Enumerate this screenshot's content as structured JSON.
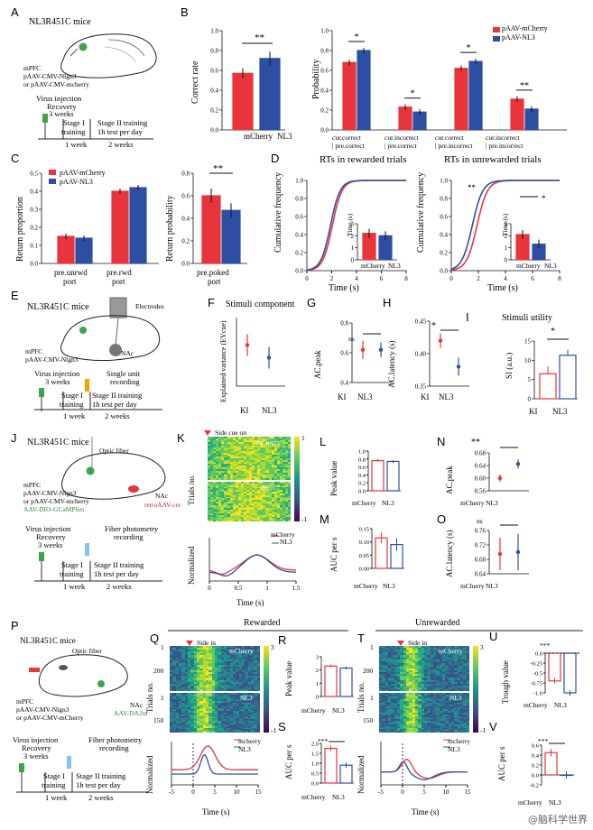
{
  "colors": {
    "mcherry": "#e8343a",
    "nl3": "#2d4fa3",
    "dark": "#111"
  },
  "A": {
    "letter": "A",
    "mouse": "NL3R451C mice",
    "injection": [
      "mPFC",
      "pAAV-CMV-Nlgn3",
      "or pAAV-CMV-mcherry"
    ],
    "timeline": {
      "virus": "Virus injection",
      "recovery": "Recovery",
      "weeks3": "3 weeks",
      "stage1": "Stage I",
      "training": "training",
      "week1": "1 week",
      "stage2": "Stage II training",
      "test": "1h test per day",
      "weeks2": "2 weeks"
    }
  },
  "B": {
    "letter": "B",
    "left": {
      "ylabel": "Correct rate",
      "categories": [
        "mCherry",
        "NL3"
      ],
      "values": [
        0.57,
        0.72
      ],
      "errors": [
        0.05,
        0.07
      ],
      "ylim": [
        0,
        1
      ],
      "yticks": [
        "0.0",
        "0.2",
        "0.4",
        "0.6",
        "0.8",
        "1.0"
      ],
      "sig": "**"
    },
    "right": {
      "ylabel": "Probability",
      "legend": [
        "pAAV-mCherry",
        "pAAV-NL3"
      ],
      "groups": [
        "cur.correct | pre.correct",
        "cur.incorrect | pre.correct",
        "cur.correct | pre.incorrect",
        "cur.incorrect | pre.incorrect"
      ],
      "mcherry": [
        0.68,
        0.23,
        0.62,
        0.31
      ],
      "nl3": [
        0.8,
        0.18,
        0.69,
        0.21
      ],
      "sig": [
        "*",
        "*",
        "*",
        "**"
      ],
      "yticks": [
        "0.0",
        "0.2",
        "0.4",
        "0.6",
        "0.8",
        "1.0"
      ]
    }
  },
  "C": {
    "letter": "C",
    "left": {
      "ylabel": "Return proportion",
      "legend": [
        "pAAV-mCherry",
        "pAAV-NL3"
      ],
      "groups": [
        "pre.unrwd port",
        "pre.rwd port"
      ],
      "mcherry": [
        0.15,
        0.4
      ],
      "nl3": [
        0.14,
        0.42
      ],
      "yticks": [
        "0.0",
        "0.1",
        "0.2",
        "0.3",
        "0.4",
        "0.5"
      ]
    },
    "right": {
      "ylabel": "Return probability",
      "xlabel": "pre.poked port",
      "mcherry": 0.6,
      "nl3": 0.47,
      "yticks": [
        "0.0",
        "0.2",
        "0.4",
        "0.6",
        "0.8"
      ],
      "sig": "**"
    }
  },
  "D": {
    "letter": "D",
    "left": {
      "title": "RTs in rewarded trials",
      "ylabel": "Cumulative frequency",
      "xlabel": "Time (s)",
      "xticks": [
        "0",
        "2",
        "4",
        "6",
        "8"
      ],
      "yticks": [
        "0.0",
        "0.2",
        "0.4",
        "0.6",
        "0.8",
        "1.0"
      ],
      "inset": {
        "ylabel": "Time (s)",
        "categories": [
          "mCherry",
          "NL3"
        ],
        "values": [
          2.2,
          2.0
        ],
        "yticks": [
          "0",
          "1",
          "2",
          "3"
        ]
      }
    },
    "right": {
      "title": "RTs in unrewarded trials",
      "ylabel": "Cumulative frequency",
      "xlabel": "Time (s)",
      "sig": "**",
      "xticks": [
        "0",
        "2",
        "4",
        "6",
        "8"
      ],
      "yticks": [
        "0.0",
        "0.2",
        "0.4",
        "0.6",
        "0.8",
        "1.0"
      ],
      "inset": {
        "ylabel": "Time (s)",
        "categories": [
          "mCherry",
          "NL3"
        ],
        "values": [
          2.1,
          1.3
        ],
        "yticks": [
          "0",
          "1",
          "2",
          "3"
        ],
        "sig": "*"
      }
    }
  },
  "E": {
    "letter": "E",
    "mouse": "NL3R451C mice",
    "electrodes": "Electrodes",
    "injection": [
      "mPFC",
      "pAAV-CMV-Nlgn3"
    ],
    "nac": "NAc",
    "timeline": {
      "virus": "Virus injection",
      "weeks3": "3 weeks",
      "stage1": "Stage I",
      "training": "training",
      "week1": "1 week",
      "single": "Single unit",
      "recording": "recording",
      "stage2": "Stage II training",
      "test": "1h test per day",
      "weeks2": "2 weeks"
    }
  },
  "F": {
    "letter": "F",
    "title": "Stimuli component",
    "ylabel": "Explained variance  (EVcue)",
    "categories": [
      "KI",
      "NL3"
    ],
    "values": [
      0.65,
      0.45
    ]
  },
  "G": {
    "letter": "G",
    "ylabel": "AC.peak",
    "categories": [
      "KI",
      "NL3"
    ],
    "sig": "ns",
    "values": [
      0.62,
      0.62
    ],
    "yticks": [
      "0.4",
      "0.6",
      "0.8"
    ]
  },
  "H": {
    "letter": "H",
    "ylabel": "AC.latency (s)",
    "categories": [
      "KI",
      "NL3"
    ],
    "sig": "*",
    "values": [
      0.42,
      0.38
    ],
    "yticks": [
      "0.35",
      "0.40",
      "0.45"
    ]
  },
  "I": {
    "letter": "I",
    "title": "Stimuli utility",
    "ylabel": "SI (a.u.)",
    "categories": [
      "KI",
      "NL3"
    ],
    "values": [
      6.5,
      11.3
    ],
    "sig": "*",
    "yticks": [
      "0",
      "5",
      "10",
      "15"
    ]
  },
  "J": {
    "letter": "J",
    "mouse": "NL3R451C mice",
    "fiber": "Optic fiber",
    "injection": [
      "mPFC",
      "pAAV-CMV-Nlgn3",
      "or pAAV-CMV-mcherry",
      "AAV-DIO-GCaMP6m"
    ],
    "nac": "NAc",
    "retro": "retroAAV-cre",
    "timeline": {
      "virus": "Virus injection",
      "recovery": "Recovery",
      "weeks3": "3 weeks",
      "fiber": "Fiber photometry",
      "recording": "recording",
      "stage1": "Stage I",
      "training": "training",
      "week1": "1 week",
      "stage2": "Stage II training",
      "test": "1h test per day",
      "weeks2": "2 weeks"
    }
  },
  "K": {
    "letter": "K",
    "cue": "Side cue on",
    "labels": [
      "mCherry",
      "NL3"
    ],
    "ylabel": "Trials no.",
    "ylabel2": "Normalized",
    "xlabel": "Time (s)",
    "xticks": [
      "0",
      "0.5",
      "1",
      "1.5"
    ],
    "cbticks": [
      "1",
      "-1"
    ],
    "legend": [
      "mCherry",
      "NL3"
    ]
  },
  "L": {
    "letter": "L",
    "ylabel": "Peak value",
    "categories": [
      "mCherry",
      "NL3"
    ],
    "values": [
      0.76,
      0.74
    ],
    "yticks": [
      "0.0",
      "0.2",
      "0.4",
      "0.6",
      "0.8",
      "1.0"
    ]
  },
  "M": {
    "letter": "M",
    "ylabel": "AUC per s",
    "categories": [
      "mCherry",
      "NL3"
    ],
    "values": [
      0.115,
      0.09
    ],
    "yticks": [
      "0.00",
      "0.05",
      "0.10",
      "0.15"
    ]
  },
  "N": {
    "letter": "N",
    "ylabel": "AC.peak",
    "categories": [
      "mCherry",
      "NL3"
    ],
    "values": [
      0.6,
      0.645
    ],
    "sig": "**",
    "yticks": [
      "0.56",
      "0.60",
      "0.64",
      "0.68"
    ]
  },
  "O": {
    "letter": "O",
    "ylabel": "AC.latency (s)",
    "categories": [
      "mCherry",
      "NL3"
    ],
    "values": [
      0.695,
      0.7
    ],
    "sig": "ns",
    "yticks": [
      "0.64",
      "0.68",
      "0.72",
      "0.76"
    ]
  },
  "P": {
    "letter": "P",
    "mouse": "NL3R451C mice",
    "fiber": "Optic fiber",
    "injection": [
      "mPFC",
      "pAAV-CMV-Nlgn3",
      "or pAAV-CMV-mCherry"
    ],
    "nac": "NAc",
    "da": "AAV-DA2m",
    "timeline": {
      "virus": "Virus injection",
      "recovery": "Recovery",
      "weeks3": "3 weeks",
      "fiber": "Fiber photometry",
      "recording": "recording",
      "stage1": "Stage I",
      "training": "training",
      "week1": "1 week",
      "stage2": "Stage II training",
      "test": "1h test per day",
      "weeks2": "2 weeks"
    }
  },
  "Q": {
    "letter": "Q",
    "header": "Rewarded",
    "side": "Side in",
    "labels": [
      "mCherry",
      "NL3"
    ],
    "ylabel": "Trials no.",
    "ylabel2": "Normalized",
    "xlabel": "Time (s)",
    "xticks": [
      "-5",
      "0",
      "5",
      "10",
      "15"
    ],
    "yticks_top": [
      "1",
      "200"
    ],
    "yticks_bot": [
      "1",
      "150"
    ],
    "cbticks": [
      "3",
      "-1"
    ],
    "legend": [
      "mcherry",
      "NL3"
    ]
  },
  "R": {
    "letter": "R",
    "ylabel": "Peak value",
    "categories": [
      "mCherry",
      "NL3"
    ],
    "values": [
      2.3,
      2.15
    ],
    "yticks": [
      "0",
      "1",
      "2",
      "3"
    ]
  },
  "S": {
    "letter": "S",
    "ylabel": "AUC per s",
    "categories": [
      "mCherry",
      "NL3"
    ],
    "values": [
      1.75,
      0.9
    ],
    "sig": "***",
    "yticks": [
      "0.0",
      "0.5",
      "1.0",
      "1.5",
      "2.0"
    ]
  },
  "T": {
    "letter": "T",
    "header": "Unrewarded",
    "side": "Side in",
    "labels": [
      "mCherry",
      "NL3"
    ],
    "ylabel": "Trials no.",
    "ylabel2": "Normalized",
    "xlabel": "Time (s)",
    "xticks": [
      "-5",
      "0",
      "5",
      "10",
      "15"
    ],
    "yticks_top": [
      "1",
      "200"
    ],
    "yticks_bot": [
      "1",
      "150"
    ],
    "cbticks": [
      "3",
      "-1"
    ],
    "legend": [
      "mcherry",
      "NL3"
    ]
  },
  "U": {
    "letter": "U",
    "ylabel": "Trough value",
    "categories": [
      "mCherry",
      "NL3"
    ],
    "values": [
      -0.7,
      -1.0
    ],
    "sig": "***",
    "yticks": [
      "0.0",
      "-0.25",
      "-0.5",
      "-0.75",
      "-1.0"
    ]
  },
  "V": {
    "letter": "V",
    "ylabel": "AUC per s",
    "categories": [
      "mCherry",
      "NL3"
    ],
    "values": [
      0.45,
      0.0
    ],
    "sig": "***",
    "yticks": [
      "-0.2",
      "0.0",
      "0.2",
      "0.4",
      "0.6"
    ]
  },
  "watermark": "@脑科学世界"
}
